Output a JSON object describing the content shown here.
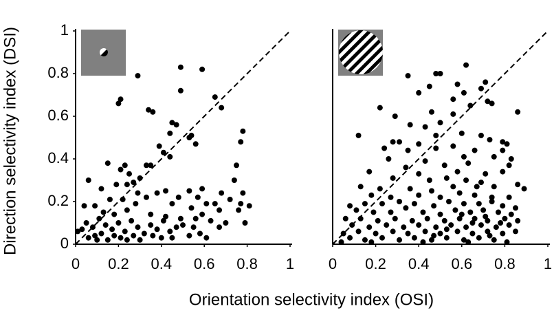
{
  "x_label": "Orientation selectivity index (OSI)",
  "y_label": "Direction selectivity index (DSI)",
  "chart_data": [
    {
      "type": "scatter",
      "color": "#000000",
      "identity_line": true,
      "xlim": [
        0,
        1
      ],
      "ylim": [
        0,
        1
      ],
      "xticks": [
        0,
        0.2,
        0.4,
        0.6,
        0.8,
        1
      ],
      "yticks": [
        0,
        0.2,
        0.4,
        0.6,
        0.8,
        1
      ],
      "x": [
        0.29,
        0.49,
        0.59,
        0.49,
        0.21,
        0.2,
        0.65,
        0.68,
        0.34,
        0.36,
        0.45,
        0.47,
        0.44,
        0.53,
        0.54,
        0.56,
        0.78,
        0.77,
        0.39,
        0.41,
        0.44,
        0.15,
        0.33,
        0.35,
        0.23,
        0.21,
        0.25,
        0.75,
        0.74,
        0.27,
        0.3,
        0.06,
        0.19,
        0.24,
        0.12,
        0.29,
        0.38,
        0.42,
        0.53,
        0.59,
        0.57,
        0.68,
        0.78,
        0.81,
        0.77,
        0.72,
        0.65,
        0.61,
        0.54,
        0.48,
        0.45,
        0.33,
        0.28,
        0.22,
        0.16,
        0.09,
        0.04,
        0.13,
        0.18,
        0.24,
        0.35,
        0.42,
        0.49,
        0.56,
        0.63,
        0.7,
        0.79,
        0.76,
        0.67,
        0.59,
        0.05,
        0.08,
        0.11,
        0.14,
        0.17,
        0.2,
        0.23,
        0.26,
        0.29,
        0.32,
        0.35,
        0.38,
        0.41,
        0.44,
        0.47,
        0.5,
        0.55,
        0.58,
        0.61,
        0.67,
        0.01,
        0.03,
        0.06,
        0.09,
        0.12,
        0.15,
        0.18,
        0.21,
        0.27,
        0.3,
        0.36,
        0.4,
        0.45,
        0.53,
        0.1,
        0.24
      ],
      "y": [
        0.79,
        0.83,
        0.82,
        0.72,
        0.68,
        0.66,
        0.69,
        0.64,
        0.63,
        0.62,
        0.57,
        0.56,
        0.52,
        0.5,
        0.51,
        0.47,
        0.53,
        0.48,
        0.46,
        0.43,
        0.41,
        0.38,
        0.37,
        0.37,
        0.37,
        0.35,
        0.33,
        0.37,
        0.3,
        0.29,
        0.31,
        0.3,
        0.28,
        0.28,
        0.26,
        0.24,
        0.24,
        0.25,
        0.25,
        0.26,
        0.22,
        0.24,
        0.24,
        0.18,
        0.19,
        0.21,
        0.19,
        0.19,
        0.17,
        0.22,
        0.19,
        0.22,
        0.19,
        0.21,
        0.21,
        0.18,
        0.18,
        0.15,
        0.14,
        0.16,
        0.14,
        0.13,
        0.12,
        0.12,
        0.11,
        0.1,
        0.1,
        0.16,
        0.16,
        0.14,
        0.1,
        0.08,
        0.12,
        0.09,
        0.07,
        0.1,
        0.06,
        0.11,
        0.08,
        0.05,
        0.09,
        0.07,
        0.11,
        0.06,
        0.08,
        0.09,
        0.08,
        0.05,
        0.03,
        0.08,
        0.06,
        0.07,
        0.03,
        0.04,
        0.05,
        0.02,
        0.04,
        0.03,
        0.04,
        0.02,
        0.04,
        0.03,
        0.03,
        0.04,
        0.02,
        0.02
      ]
    },
    {
      "type": "scatter",
      "color": "#000000",
      "identity_line": true,
      "xlim": [
        0,
        1
      ],
      "ylim": [
        0,
        1
      ],
      "xticks": [
        0,
        0.2,
        0.4,
        0.6,
        0.8,
        1
      ],
      "x": [
        0.62,
        0.48,
        0.5,
        0.35,
        0.45,
        0.4,
        0.58,
        0.71,
        0.69,
        0.61,
        0.72,
        0.74,
        0.56,
        0.64,
        0.22,
        0.46,
        0.86,
        0.29,
        0.56,
        0.5,
        0.36,
        0.43,
        0.12,
        0.48,
        0.6,
        0.69,
        0.73,
        0.79,
        0.81,
        0.28,
        0.31,
        0.4,
        0.48,
        0.56,
        0.66,
        0.79,
        0.24,
        0.35,
        0.61,
        0.75,
        0.83,
        0.26,
        0.43,
        0.52,
        0.63,
        0.82,
        0.17,
        0.34,
        0.4,
        0.58,
        0.71,
        0.79,
        0.28,
        0.45,
        0.53,
        0.62,
        0.69,
        0.86,
        0.89,
        0.13,
        0.22,
        0.36,
        0.46,
        0.56,
        0.75,
        0.18,
        0.27,
        0.4,
        0.5,
        0.59,
        0.66,
        0.82,
        0.08,
        0.15,
        0.23,
        0.31,
        0.38,
        0.47,
        0.54,
        0.61,
        0.68,
        0.74,
        0.79,
        0.85,
        0.11,
        0.19,
        0.27,
        0.34,
        0.42,
        0.5,
        0.57,
        0.64,
        0.7,
        0.77,
        0.83,
        0.06,
        0.13,
        0.21,
        0.29,
        0.37,
        0.44,
        0.52,
        0.59,
        0.66,
        0.72,
        0.8,
        0.86,
        0.09,
        0.17,
        0.25,
        0.33,
        0.4,
        0.48,
        0.55,
        0.62,
        0.69,
        0.76,
        0.82,
        0.05,
        0.12,
        0.2,
        0.28,
        0.35,
        0.43,
        0.5,
        0.58,
        0.65,
        0.72,
        0.79,
        0.85,
        0.08,
        0.15,
        0.23,
        0.31,
        0.38,
        0.46,
        0.53,
        0.61,
        0.68,
        0.75,
        0.81,
        0.04,
        0.18,
        0.42,
        0.63,
        0.71,
        0.74,
        0.67,
        0.6,
        0.53,
        0.47,
        0.65,
        0.73,
        0.78
      ],
      "y": [
        0.84,
        0.8,
        0.8,
        0.79,
        0.74,
        0.71,
        0.75,
        0.76,
        0.73,
        0.71,
        0.67,
        0.66,
        0.68,
        0.65,
        0.64,
        0.62,
        0.62,
        0.6,
        0.61,
        0.57,
        0.56,
        0.55,
        0.51,
        0.51,
        0.52,
        0.51,
        0.49,
        0.48,
        0.47,
        0.48,
        0.48,
        0.47,
        0.45,
        0.46,
        0.44,
        0.44,
        0.45,
        0.44,
        0.41,
        0.41,
        0.4,
        0.4,
        0.39,
        0.37,
        0.38,
        0.37,
        0.34,
        0.36,
        0.33,
        0.34,
        0.33,
        0.34,
        0.31,
        0.3,
        0.31,
        0.3,
        0.29,
        0.28,
        0.26,
        0.27,
        0.26,
        0.26,
        0.25,
        0.27,
        0.27,
        0.23,
        0.22,
        0.23,
        0.22,
        0.24,
        0.23,
        0.22,
        0.18,
        0.19,
        0.19,
        0.2,
        0.19,
        0.18,
        0.2,
        0.19,
        0.19,
        0.2,
        0.18,
        0.17,
        0.16,
        0.15,
        0.15,
        0.17,
        0.15,
        0.14,
        0.16,
        0.15,
        0.16,
        0.15,
        0.14,
        0.12,
        0.12,
        0.11,
        0.12,
        0.11,
        0.12,
        0.11,
        0.12,
        0.12,
        0.11,
        0.12,
        0.11,
        0.09,
        0.08,
        0.09,
        0.08,
        0.09,
        0.08,
        0.09,
        0.08,
        0.09,
        0.08,
        0.09,
        0.05,
        0.06,
        0.05,
        0.06,
        0.05,
        0.06,
        0.05,
        0.06,
        0.05,
        0.06,
        0.05,
        0.06,
        0.03,
        0.02,
        0.03,
        0.02,
        0.03,
        0.02,
        0.03,
        0.02,
        0.03,
        0.02,
        0.01,
        0.01,
        0.01,
        0.01,
        0.01,
        0.13,
        0.22,
        0.27,
        0.14,
        0.07,
        0.04,
        0.1,
        0.04,
        0.1
      ]
    }
  ]
}
